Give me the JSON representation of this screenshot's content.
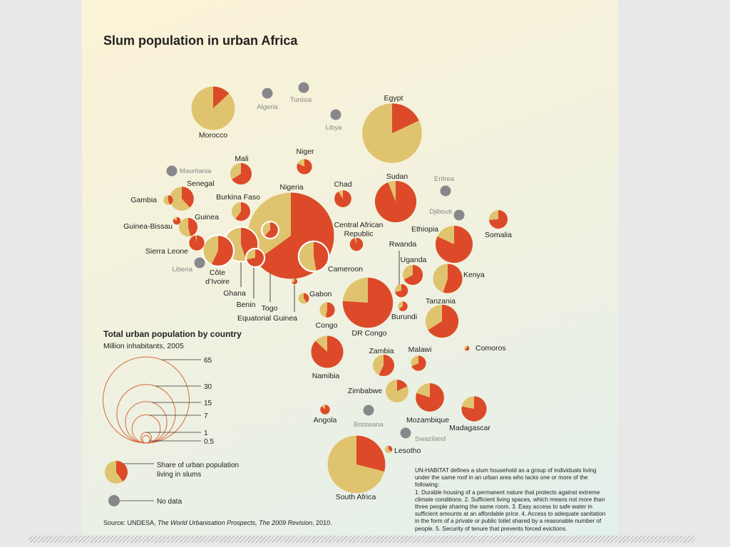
{
  "title": "Slum population in urban Africa",
  "legend": {
    "title": "Total urban population by country",
    "subtitle": "Million inhabitants, 2005",
    "size_values": [
      "65",
      "30",
      "15",
      "7",
      "1",
      "0.5"
    ],
    "share_label_1": "Share of urban population",
    "share_label_2": "living in slums",
    "nodata_label": "No data"
  },
  "definition_note": "UN-HABITAT defines a slum household as a group of individuals living\nunder the same roof in an urban area who lacks one or more of the following:\n1. Durable housing of a permanent nature that protects against extreme\nclimate conditions. 2. Sufficient living spaces, which means not more than\nthree people sharing the same room. 3. Easy access to safe water in\nsufficient amounts at an affordable price. 4. Access to adequate sanitation\nin the form of a private or public toilet shared by a reasonable number of\npeople. 5. Security of tenure that prevents forced evictions.",
  "source": {
    "prefix": "Source: UNDESA, ",
    "italic": "The World Urbanisation Prospects, The 2009 Revision",
    "suffix": ", 2010."
  },
  "colors": {
    "slum": "#dc4a2a",
    "nonslum": "#e0c36e",
    "nodata": "#87878c",
    "legend_line": "#d9683c"
  },
  "chart_data": {
    "type": "pie",
    "title": "Slum population in urban Africa",
    "value_meaning": "bubble size = total urban population (million, 2005); pie = share of urban population living in slums (%)",
    "countries": [
      {
        "name": "Morocco",
        "urban_pop": 16.5,
        "slum_share": 13
      },
      {
        "name": "Algeria",
        "urban_pop": null,
        "slum_share": null
      },
      {
        "name": "Tunisia",
        "urban_pop": null,
        "slum_share": null
      },
      {
        "name": "Libya",
        "urban_pop": null,
        "slum_share": null
      },
      {
        "name": "Egypt",
        "urban_pop": 31,
        "slum_share": 18
      },
      {
        "name": "Mauritania",
        "urban_pop": null,
        "slum_share": null
      },
      {
        "name": "Mali",
        "urban_pop": 4,
        "slum_share": 66
      },
      {
        "name": "Niger",
        "urban_pop": 2,
        "slum_share": 82
      },
      {
        "name": "Senegal",
        "urban_pop": 5,
        "slum_share": 38
      },
      {
        "name": "Gambia",
        "urban_pop": 0.8,
        "slum_share": 45
      },
      {
        "name": "Burkina Faso",
        "urban_pop": 3,
        "slum_share": 60
      },
      {
        "name": "Chad",
        "urban_pop": 2.5,
        "slum_share": 91
      },
      {
        "name": "Nigeria",
        "urban_pop": 65,
        "slum_share": 65
      },
      {
        "name": "Sudan",
        "urban_pop": 15,
        "slum_share": 94
      },
      {
        "name": "Eritrea",
        "urban_pop": null,
        "slum_share": null
      },
      {
        "name": "Djibouti",
        "urban_pop": null,
        "slum_share": null
      },
      {
        "name": "Somalia",
        "urban_pop": 3,
        "slum_share": 74
      },
      {
        "name": "Guinea",
        "urban_pop": 3,
        "slum_share": 46
      },
      {
        "name": "Guinea-Bissau",
        "urban_pop": 0.5,
        "slum_share": 83
      },
      {
        "name": "Sierra Leone",
        "urban_pop": 2,
        "slum_share": 97
      },
      {
        "name": "Liberia",
        "urban_pop": null,
        "slum_share": null
      },
      {
        "name": "Côte d'Ivoire",
        "urban_pop": 8.5,
        "slum_share": 57
      },
      {
        "name": "Ghana",
        "urban_pop": 10.5,
        "slum_share": 45
      },
      {
        "name": "Togo",
        "urban_pop": 2.5,
        "slum_share": 62
      },
      {
        "name": "Benin",
        "urban_pop": 3,
        "slum_share": 72
      },
      {
        "name": "Equatorial Guinea",
        "urban_pop": 0.3,
        "slum_share": 66
      },
      {
        "name": "Cameroon",
        "urban_pop": 8,
        "slum_share": 47
      },
      {
        "name": "Central African Republic",
        "urban_pop": 1.5,
        "slum_share": 95
      },
      {
        "name": "Gabon",
        "urban_pop": 1,
        "slum_share": 39
      },
      {
        "name": "Congo",
        "urban_pop": 2,
        "slum_share": 53
      },
      {
        "name": "DR Congo",
        "urban_pop": 22,
        "slum_share": 76
      },
      {
        "name": "Ethiopia",
        "urban_pop": 12,
        "slum_share": 82
      },
      {
        "name": "Rwanda",
        "urban_pop": 1.5,
        "slum_share": 71
      },
      {
        "name": "Uganda",
        "urban_pop": 3.5,
        "slum_share": 67
      },
      {
        "name": "Burundi",
        "urban_pop": 0.8,
        "slum_share": 65
      },
      {
        "name": "Kenya",
        "urban_pop": 7.5,
        "slum_share": 55
      },
      {
        "name": "Tanzania",
        "urban_pop": 9.5,
        "slum_share": 66
      },
      {
        "name": "Comoros",
        "urban_pop": 0.2,
        "slum_share": 69
      },
      {
        "name": "Namibia",
        "urban_pop": 9,
        "slum_share": 87
      },
      {
        "name": "Zambia",
        "urban_pop": 4,
        "slum_share": 57
      },
      {
        "name": "Malawi",
        "urban_pop": 2,
        "slum_share": 68
      },
      {
        "name": "Zimbabwe",
        "urban_pop": 4.5,
        "slum_share": 18
      },
      {
        "name": "Mozambique",
        "urban_pop": 7,
        "slum_share": 80
      },
      {
        "name": "Madagascar",
        "urban_pop": 5.5,
        "slum_share": 78
      },
      {
        "name": "Angola",
        "urban_pop": 0.8,
        "slum_share": 87
      },
      {
        "name": "Botswana",
        "urban_pop": null,
        "slum_share": null
      },
      {
        "name": "Swaziland",
        "urban_pop": null,
        "slum_share": null
      },
      {
        "name": "Lesotho",
        "urban_pop": 0.5,
        "slum_share": 35
      },
      {
        "name": "South Africa",
        "urban_pop": 29,
        "slum_share": 29
      }
    ]
  }
}
